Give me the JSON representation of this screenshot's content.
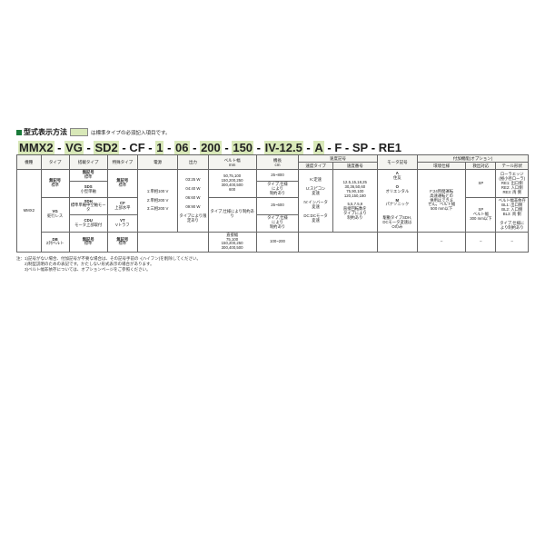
{
  "title": "型式表示方法",
  "legend": "は標準タイプの必須記入項目です。",
  "model_parts": [
    "MMX2",
    "VG",
    "SD2",
    "CF",
    "1",
    "06",
    "200",
    "150",
    "IV-12.5",
    "A",
    "F",
    "SP",
    "RE1"
  ],
  "model_highlight": [
    true,
    true,
    true,
    false,
    true,
    true,
    true,
    true,
    true,
    true,
    false,
    false,
    false
  ],
  "headers": {
    "top": [
      "機種",
      "タイプ",
      "搭載タイプ",
      "特殊タイプ",
      "電源",
      "出力",
      "ベルト幅\nmm",
      "機長\ncm",
      "速度記号",
      "",
      "モータ記号",
      "付加機能(オプション)",
      "",
      ""
    ],
    "speed_sub": [
      "速度タイプ",
      "速度番号"
    ],
    "option_sub": [
      "環境仕様",
      "救出対応",
      "テール形状"
    ]
  },
  "col": {
    "kishu": "MMX2",
    "type": [
      {
        "code": "無記号",
        "note": "標準"
      },
      {
        "code": "VG",
        "note": "蛇行レス"
      },
      {
        "code": "DB",
        "note": "2列ベルト"
      }
    ],
    "tousai": [
      {
        "code": "無記号",
        "note": "標準"
      },
      {
        "code": "SDS",
        "note": "小型単軸"
      },
      {
        "code": "SDH",
        "note": "標準単軸中空軸モータ"
      },
      {
        "code": "CDU",
        "note": "モータ上部取付"
      },
      {
        "code": "無記号",
        "note": "標準"
      }
    ],
    "tokushu": [
      {
        "code": "無記号",
        "note": "標準"
      },
      {
        "code": "CF",
        "note": "上部水平"
      },
      {
        "code": "VT",
        "note": "Vトラフ"
      },
      {
        "code": "無記号",
        "note": "標準"
      }
    ],
    "dengen": [
      "1:単相100 V",
      "2:単相200 V",
      "3:三相200 V"
    ],
    "output": [
      "03:25 W",
      "04:40 W",
      "06:60 W",
      "09:90 W",
      "タイプにより限定あり"
    ],
    "belt": [
      "50,75,100\n150,200,250\n300,400,500\n600",
      "タイプ,仕様により制約あり",
      "直接幅\n75,100\n150,200,250\n300,400,500"
    ],
    "kicho": [
      "25~800",
      "タイプ,仕様\nにより\n制約あり",
      "25~600",
      "タイプ,仕様\nにより\n制約あり",
      "100~200"
    ],
    "speed_type": [
      "K:定速",
      "U:スピコン\n変速",
      "IV:インバータ\n変速",
      "DC:DCモータ\n変速"
    ],
    "speed_num": [
      "12.5,15,18,25\n30,36,50,60\n75,90,100\n120,150,180",
      "5,5,7.5,9\n直接回転数を\nタイプにより\n制約あり"
    ],
    "motor": [
      {
        "code": "A",
        "note": "住友"
      },
      {
        "code": "O",
        "note": "オリエンタル"
      },
      {
        "code": "M",
        "note": "パナソニック"
      },
      {
        "code": "",
        "note": "駆動タイプSDH,\nDCモータ変速は\nOのみ"
      }
    ],
    "env": [
      "F:24時間運転\n高速運転との\n併用はできま\nせん。ベルト幅\n500 mm以下",
      "–"
    ],
    "rescue": [
      "SP",
      "SP\nベルト幅\n300 mm以下",
      "–"
    ],
    "tail": [
      "ローラエッジ\n(極小径ローラ)\nRE1: 出口側\nRE2: 入口側\nRE3: 両 側",
      "ベルト幅非依存\nBL1: 出口側\nBL2: 入口側\nBL3: 両 側",
      "タイプ,仕様に\nより制約あり",
      "–"
    ]
  },
  "notes": [
    "注：1)記号がない場合、付加記号が不要な場合は、その記号手前の -(ハイフン)を削除してください。",
    "　　2)制型説明のための表記です。かたしない形式表示の場合があります。",
    "　　3)ベルト幅非依存については、オプションページをご参照ください。"
  ],
  "colors": {
    "accent": "#1a7a3a",
    "hl": "#d8e8b8"
  }
}
